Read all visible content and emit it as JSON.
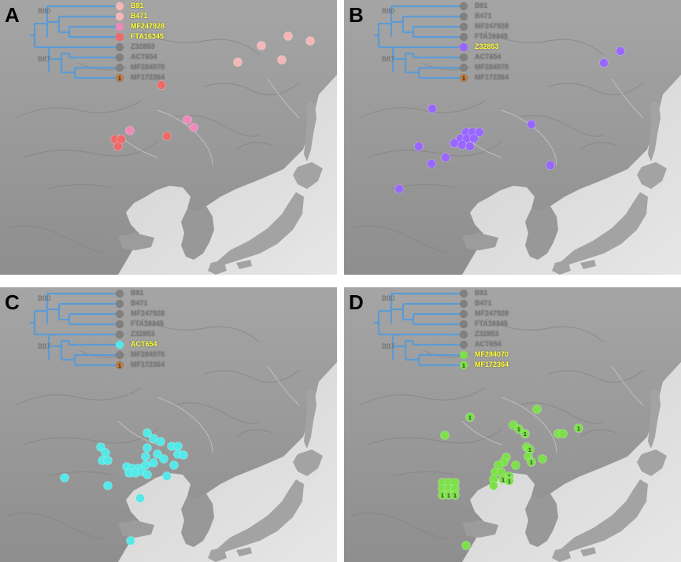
{
  "colors": {
    "tree_branch": "#5b9bd5",
    "default_tip": "#808080",
    "highlight_text": "#ffff33",
    "panelA_light": "#f4b7b7",
    "panelA_mid": "#ef8ab8",
    "panelA_dark": "#ee6a6a",
    "panelB": "#9966ff",
    "panelC": "#55e8e8",
    "panelD": "#7de04a",
    "overlap_tip": "#c97b3a"
  },
  "tree": {
    "clade_top": "B80",
    "clade_bottom": "B87",
    "leaves": [
      "B81",
      "B471",
      "MF247928",
      "FTA16345",
      "Z32853",
      "ACT654",
      "MF284070",
      "MF172364"
    ],
    "marker_text": "1"
  },
  "panels": [
    {
      "letter": "A",
      "highlighted": [
        "B81",
        "B471",
        "MF247928",
        "FTA16345"
      ],
      "tip_colors": {
        "B81": "#f4b7b7",
        "B471": "#f4b7b7",
        "MF247928": "#ef8ab8",
        "FTA16345": "#ee6a6a"
      }
    },
    {
      "letter": "B",
      "highlighted": [
        "Z32853"
      ],
      "tip_colors": {
        "Z32853": "#9966ff"
      }
    },
    {
      "letter": "C",
      "highlighted": [
        "ACT654"
      ],
      "tip_colors": {
        "ACT654": "#55e8e8"
      }
    },
    {
      "letter": "D",
      "highlighted": [
        "MF284070",
        "MF172364"
      ],
      "tip_colors": {
        "MF284070": "#7de04a",
        "MF172364": "#7de04a"
      }
    }
  ]
}
